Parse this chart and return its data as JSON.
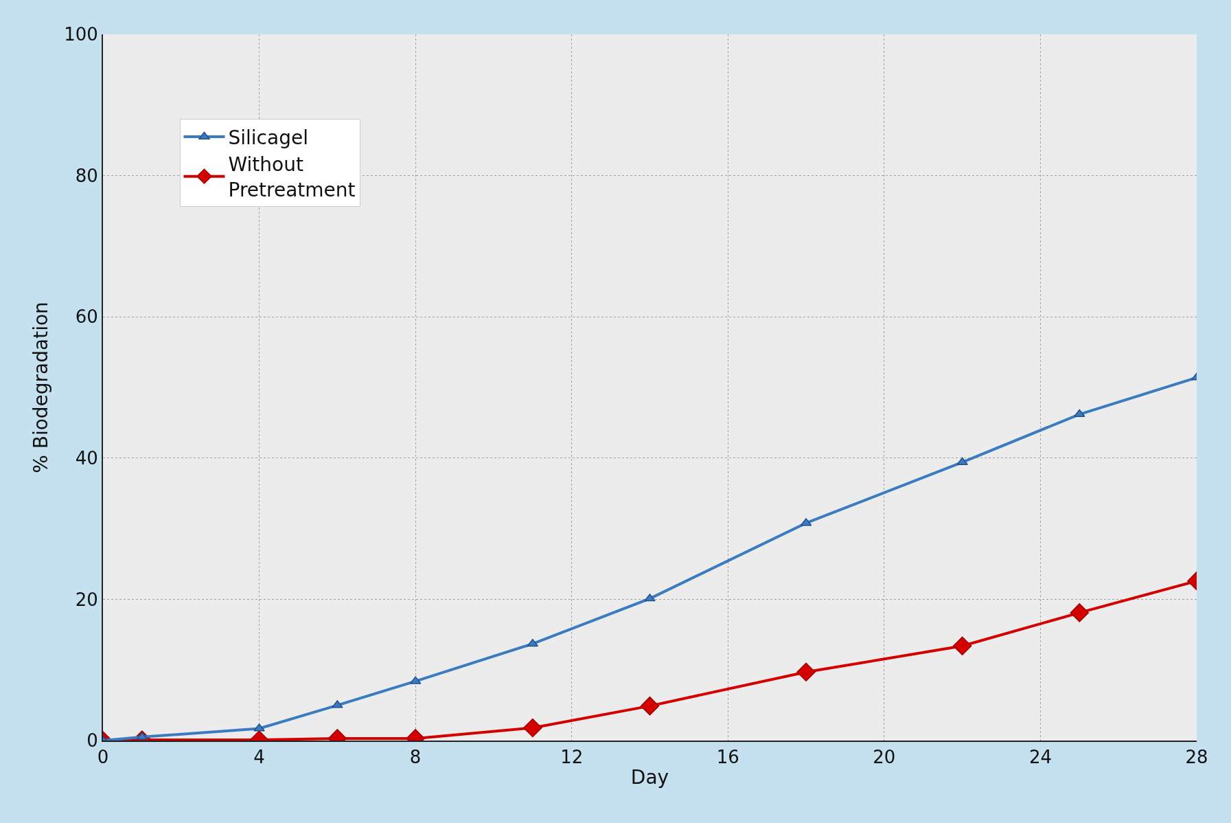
{
  "chart_data": {
    "type": "line",
    "xlabel": "Day",
    "ylabel": "% Biodegradation",
    "x": [
      0,
      1,
      4,
      6,
      8,
      11,
      14,
      18,
      22,
      25,
      28
    ],
    "series": [
      {
        "name": "Silicagel",
        "color": "#3b7cc0",
        "marker": "triangle",
        "values": [
          0,
          0.5,
          1.7,
          5,
          8.4,
          13.7,
          20.1,
          30.8,
          39.4,
          46.2,
          51.4
        ]
      },
      {
        "name": "Without Pretreatment",
        "color": "#d40000",
        "marker": "diamond",
        "values": [
          0,
          0.1,
          0.1,
          0.3,
          0.3,
          1.8,
          4.9,
          9.7,
          13.4,
          18.1,
          22.6
        ]
      }
    ],
    "xlim": [
      0,
      28
    ],
    "xticks": [
      0,
      4,
      8,
      12,
      16,
      20,
      24,
      28
    ],
    "ylim": [
      0,
      100
    ],
    "yticks": [
      0,
      20,
      40,
      60,
      80,
      100
    ],
    "grid": true,
    "legend": "top left",
    "line_style": "solid"
  }
}
